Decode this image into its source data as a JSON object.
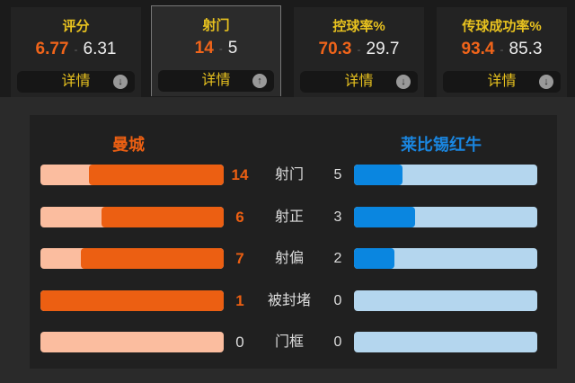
{
  "summary_cards": [
    {
      "title": "评分",
      "home": "6.77",
      "away": "6.31",
      "detail": "详情",
      "icon": "arrow-down-icon",
      "active": false
    },
    {
      "title": "射门",
      "home": "14",
      "away": "5",
      "detail": "详情",
      "icon": "arrow-up-icon",
      "active": true
    },
    {
      "title": "控球率%",
      "home": "70.3",
      "away": "29.7",
      "detail": "详情",
      "icon": "arrow-down-icon",
      "active": false
    },
    {
      "title": "传球成功率%",
      "home": "93.4",
      "away": "85.3",
      "detail": "详情",
      "icon": "arrow-down-icon",
      "active": false
    }
  ],
  "separator": "-",
  "teams": {
    "home": "曼城",
    "away": "莱比锡红牛",
    "home_color": "#ec5f12",
    "away_color": "#0a86e0"
  },
  "stats": [
    {
      "label": "射门",
      "home": 14,
      "away": 5
    },
    {
      "label": "射正",
      "home": 6,
      "away": 3
    },
    {
      "label": "射偏",
      "home": 7,
      "away": 2
    },
    {
      "label": "被封堵",
      "home": 1,
      "away": 0
    },
    {
      "label": "门框",
      "home": 0,
      "away": 0
    }
  ]
}
